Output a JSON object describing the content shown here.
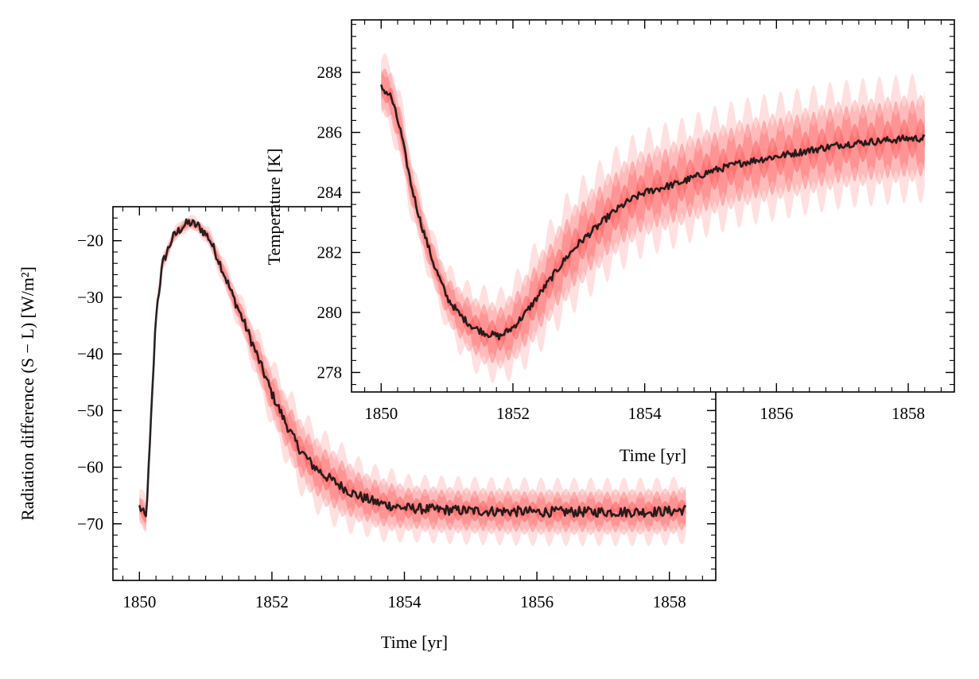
{
  "chart_data": [
    {
      "type": "line",
      "panel": "radiation",
      "xlabel": "Time [yr]",
      "ylabel": "Radiation difference (S − L) [W/m²]",
      "xlim": [
        1849.6,
        1858.7
      ],
      "ylim": [
        -80,
        -14
      ],
      "xticks": [
        1850,
        1852,
        1854,
        1856,
        1858
      ],
      "yticks": [
        -20,
        -30,
        -40,
        -50,
        -60,
        -70
      ],
      "band_color": "#ff4d4d",
      "line_color": "#111111",
      "series": [
        {
          "style": "mean line with shaded spread",
          "x": [
            1850.0,
            1850.1,
            1850.15,
            1850.25,
            1850.35,
            1850.5,
            1850.65,
            1850.75,
            1850.9,
            1851.05,
            1851.2,
            1851.4,
            1851.6,
            1851.8,
            1852.0,
            1852.2,
            1852.4,
            1852.6,
            1852.8,
            1853.0,
            1853.2,
            1853.4,
            1853.6,
            1853.8,
            1854.0,
            1854.5,
            1855.0,
            1855.5,
            1856.0,
            1856.5,
            1857.0,
            1857.5,
            1858.0,
            1858.25
          ],
          "values": [
            -67,
            -69,
            -58,
            -33,
            -24,
            -19.5,
            -17.5,
            -16.8,
            -17.5,
            -19.5,
            -23.5,
            -29.5,
            -35,
            -41,
            -47,
            -52,
            -56.5,
            -59.5,
            -61.5,
            -63,
            -64.5,
            -65.5,
            -66.3,
            -66.8,
            -67.2,
            -67.5,
            -67.7,
            -67.8,
            -67.9,
            -67.9,
            -67.9,
            -67.9,
            -67.8,
            -67.5
          ],
          "spread": [
            3,
            3,
            3,
            2,
            1.5,
            1.2,
            1.2,
            1.2,
            1.2,
            1.5,
            2,
            2.5,
            3,
            4,
            5,
            5.5,
            6,
            6,
            6,
            6,
            5.5,
            5,
            5,
            5,
            4.5,
            4.5,
            4.5,
            4.5,
            4.5,
            4.5,
            4.5,
            4.5,
            4.5,
            4.5
          ]
        }
      ]
    },
    {
      "type": "line",
      "panel": "temperature",
      "xlabel": "Time [yr]",
      "ylabel": "Temperature [K]",
      "xlim": [
        1849.55,
        1858.7
      ],
      "ylim": [
        277.35,
        289.75
      ],
      "xticks": [
        1850,
        1852,
        1854,
        1856,
        1858
      ],
      "yticks": [
        288,
        286,
        284,
        282,
        280,
        278
      ],
      "band_color": "#ff4d4d",
      "line_color": "#111111",
      "series": [
        {
          "style": "mean line with shaded spread",
          "x": [
            1850.0,
            1850.15,
            1850.3,
            1850.45,
            1850.6,
            1850.8,
            1851.0,
            1851.2,
            1851.4,
            1851.6,
            1851.8,
            1852.0,
            1852.2,
            1852.4,
            1852.6,
            1852.8,
            1853.0,
            1853.25,
            1853.5,
            1853.75,
            1854.0,
            1854.5,
            1855.0,
            1855.5,
            1856.0,
            1856.5,
            1857.0,
            1857.5,
            1858.0,
            1858.25
          ],
          "values": [
            287.5,
            287.2,
            286.0,
            284.3,
            283.0,
            281.6,
            280.5,
            279.9,
            279.5,
            279.3,
            279.2,
            279.5,
            280.0,
            280.6,
            281.2,
            281.8,
            282.3,
            282.8,
            283.3,
            283.7,
            284.0,
            284.3,
            284.7,
            285.0,
            285.2,
            285.4,
            285.6,
            285.7,
            285.8,
            285.8
          ],
          "spread": [
            0.9,
            1.0,
            1.0,
            0.9,
            0.8,
            0.8,
            0.9,
            1.0,
            1.1,
            1.2,
            1.2,
            1.3,
            1.4,
            1.5,
            1.5,
            1.6,
            1.6,
            1.6,
            1.6,
            1.6,
            1.6,
            1.6,
            1.6,
            1.6,
            1.6,
            1.6,
            1.6,
            1.6,
            1.6,
            1.6
          ]
        }
      ]
    }
  ]
}
